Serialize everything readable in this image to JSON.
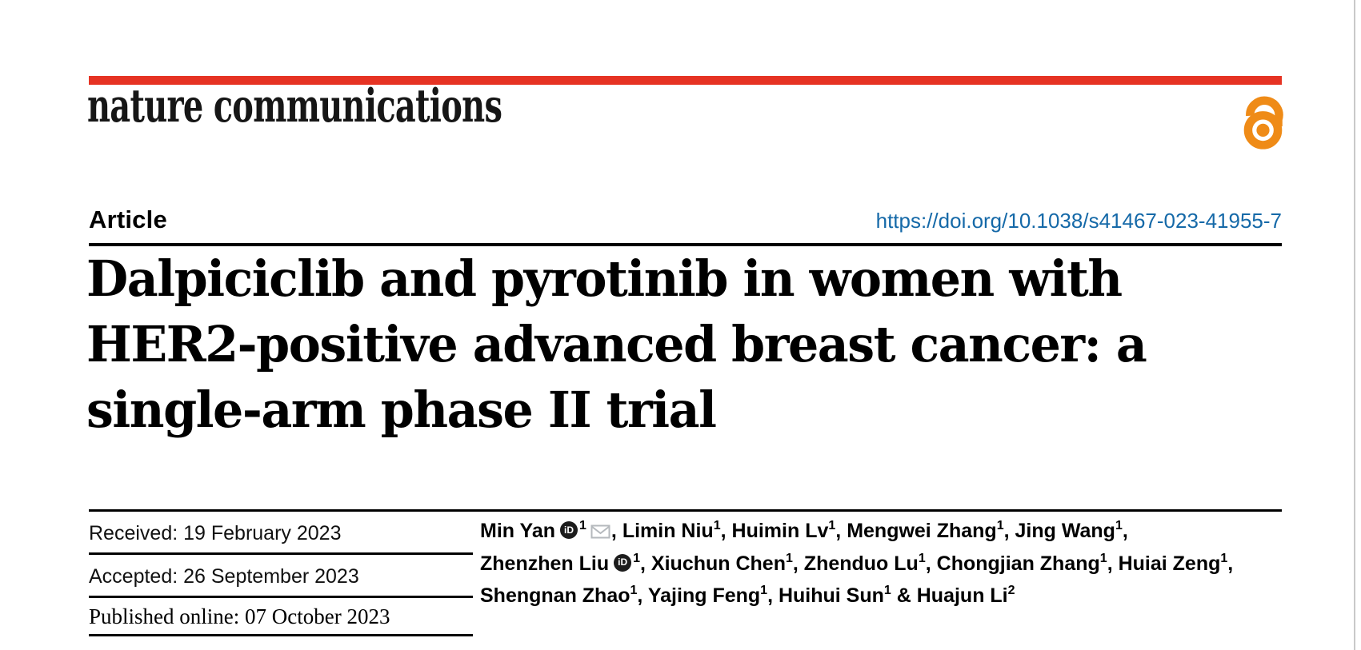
{
  "masthead": {
    "journal": "nature communications",
    "accent_bar_color": "#e63323",
    "open_access_color": "#ef8b17"
  },
  "article_bar": {
    "type_label": "Article",
    "doi": "https://doi.org/10.1038/s41467-023-41955-7",
    "doi_color": "#1569a8"
  },
  "title_lines": {
    "line1": "Dalpiciclib and pyrotinib in women with",
    "line2": "HER2-positive advanced breast cancer: a",
    "line3": "single-arm phase II trial"
  },
  "history": {
    "received": "Received: 19 February 2023",
    "accepted": "Accepted: 26 September 2023",
    "published": "Published online: 07 October 2023"
  },
  "authors": {
    "orcid_badge_text": "iD",
    "mail_icon_color": "#b5b9bd",
    "lines": [
      [
        {
          "name": "Min Yan",
          "orcid": true,
          "sup": "1",
          "mail": true,
          "trail": ", "
        },
        {
          "name": "Limin Niu",
          "sup": "1",
          "trail": ", "
        },
        {
          "name": "Huimin Lv",
          "sup": "1",
          "trail": ", "
        },
        {
          "name": "Mengwei Zhang",
          "sup": "1",
          "trail": ", "
        },
        {
          "name": "Jing Wang",
          "sup": "1",
          "trail": ","
        }
      ],
      [
        {
          "name": "Zhenzhen Liu",
          "orcid": true,
          "sup": "1",
          "trail": ", "
        },
        {
          "name": "Xiuchun Chen",
          "sup": "1",
          "trail": ", "
        },
        {
          "name": "Zhenduo Lu",
          "sup": "1",
          "trail": ", "
        },
        {
          "name": "Chongjian Zhang",
          "sup": "1",
          "trail": ", "
        },
        {
          "name": "Huiai Zeng",
          "sup": "1",
          "trail": ","
        }
      ],
      [
        {
          "name": "Shengnan Zhao",
          "sup": "1",
          "trail": ", "
        },
        {
          "name": "Yajing Feng",
          "sup": "1",
          "trail": ", "
        },
        {
          "name": "Huihui Sun",
          "sup": "1",
          "trail": " & "
        },
        {
          "name": "Huajun Li",
          "sup": "2",
          "trail": ""
        }
      ]
    ]
  }
}
